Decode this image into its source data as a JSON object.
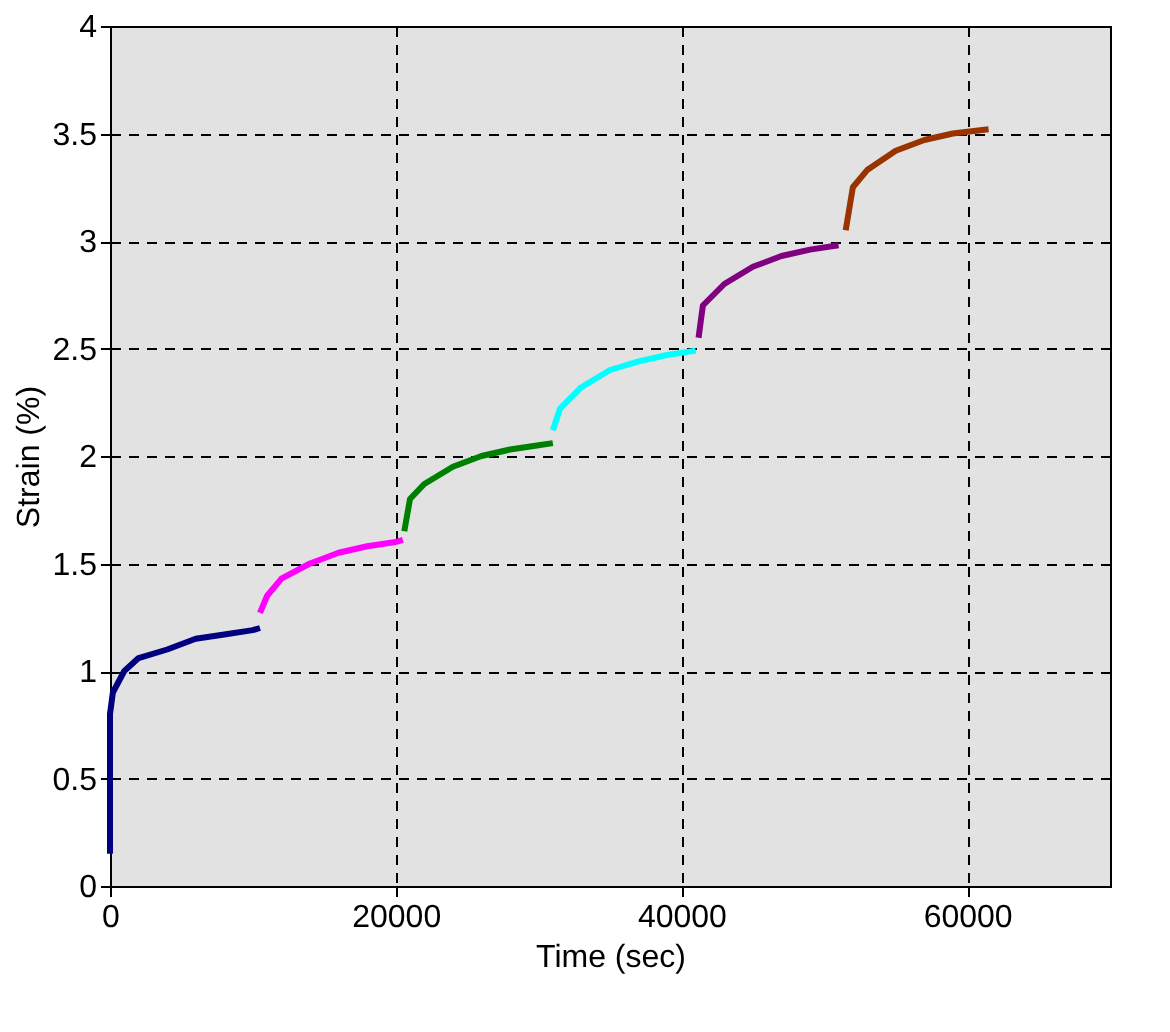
{
  "chart_data": {
    "type": "line",
    "xlabel": "Time (sec)",
    "ylabel": "Strain (%)",
    "xlim": [
      0,
      70000
    ],
    "ylim": [
      0,
      4
    ],
    "xticks": [
      0,
      20000,
      40000,
      60000
    ],
    "yticks": [
      0,
      0.5,
      1,
      1.5,
      2,
      2.5,
      3,
      3.5,
      4
    ],
    "grid": true,
    "legend": false,
    "marker": "none",
    "line_style": "solid",
    "series": [
      {
        "color": "#000080",
        "x": [
          0,
          0,
          200,
          1000,
          2000,
          4000,
          6000,
          8000,
          10000,
          10500
        ],
        "values": [
          0.15,
          0.8,
          0.9,
          1.0,
          1.06,
          1.1,
          1.15,
          1.17,
          1.19,
          1.2
        ]
      },
      {
        "color": "#ff00ff",
        "x": [
          10500,
          11000,
          12000,
          14000,
          16000,
          18000,
          20000,
          20500
        ],
        "values": [
          1.27,
          1.35,
          1.43,
          1.5,
          1.55,
          1.58,
          1.6,
          1.61
        ]
      },
      {
        "color": "#008000",
        "x": [
          20600,
          21000,
          22000,
          24000,
          26000,
          28000,
          30000,
          31000
        ],
        "values": [
          1.65,
          1.8,
          1.87,
          1.95,
          2.0,
          2.03,
          2.05,
          2.06
        ]
      },
      {
        "color": "#00ffff",
        "x": [
          31000,
          31500,
          33000,
          35000,
          37000,
          39000,
          41000
        ],
        "values": [
          2.12,
          2.22,
          2.32,
          2.4,
          2.44,
          2.47,
          2.49
        ]
      },
      {
        "color": "#800080",
        "x": [
          41200,
          41500,
          43000,
          45000,
          47000,
          49000,
          51000
        ],
        "values": [
          2.55,
          2.7,
          2.8,
          2.88,
          2.93,
          2.96,
          2.98
        ]
      },
      {
        "color": "#993300",
        "x": [
          51500,
          52000,
          53000,
          55000,
          57000,
          59000,
          61500
        ],
        "values": [
          3.05,
          3.25,
          3.33,
          3.42,
          3.47,
          3.5,
          3.52
        ]
      }
    ]
  }
}
